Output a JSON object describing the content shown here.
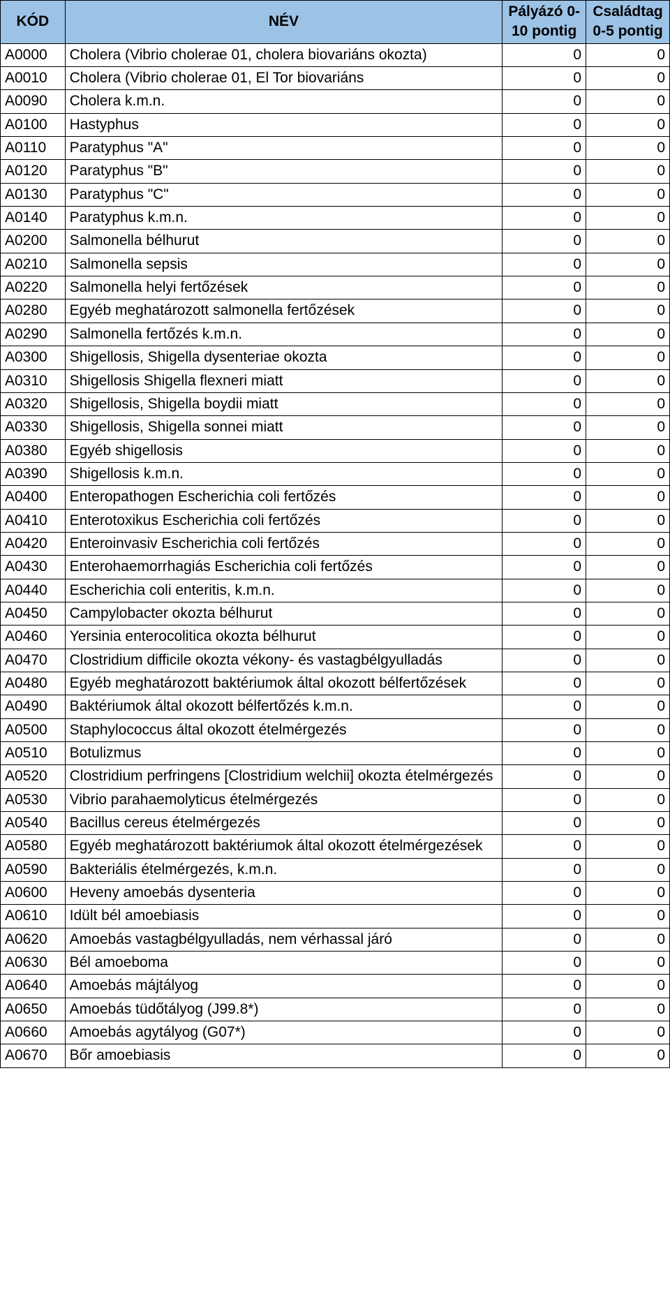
{
  "table": {
    "header_bg": "#9cc2e5",
    "columns": [
      {
        "key": "code",
        "label": "KÓD"
      },
      {
        "key": "name",
        "label": "NÉV"
      },
      {
        "key": "p1",
        "label": "Pályázó 0-10 pontig"
      },
      {
        "key": "p2",
        "label": "Családtag 0-5 pontig"
      }
    ],
    "rows": [
      {
        "code": "A0000",
        "name": "Cholera (Vibrio cholerae 01, cholera biovariáns okozta)",
        "p1": "0",
        "p2": "0"
      },
      {
        "code": "A0010",
        "name": "Cholera (Vibrio cholerae 01, El Tor biovariáns",
        "p1": "0",
        "p2": "0"
      },
      {
        "code": "A0090",
        "name": "Cholera k.m.n.",
        "p1": "0",
        "p2": "0"
      },
      {
        "code": "A0100",
        "name": "Hastyphus",
        "p1": "0",
        "p2": "0"
      },
      {
        "code": "A0110",
        "name": "Paratyphus \"A\"",
        "p1": "0",
        "p2": "0"
      },
      {
        "code": "A0120",
        "name": "Paratyphus \"B\"",
        "p1": "0",
        "p2": "0"
      },
      {
        "code": "A0130",
        "name": "Paratyphus \"C\"",
        "p1": "0",
        "p2": "0"
      },
      {
        "code": "A0140",
        "name": "Paratyphus k.m.n.",
        "p1": "0",
        "p2": "0"
      },
      {
        "code": "A0200",
        "name": "Salmonella bélhurut",
        "p1": "0",
        "p2": "0"
      },
      {
        "code": "A0210",
        "name": "Salmonella sepsis",
        "p1": "0",
        "p2": "0"
      },
      {
        "code": "A0220",
        "name": "Salmonella helyi fertőzések",
        "p1": "0",
        "p2": "0"
      },
      {
        "code": "A0280",
        "name": "Egyéb meghatározott salmonella fertőzések",
        "p1": "0",
        "p2": "0"
      },
      {
        "code": "A0290",
        "name": "Salmonella fertőzés k.m.n.",
        "p1": "0",
        "p2": "0"
      },
      {
        "code": "A0300",
        "name": "Shigellosis, Shigella dysenteriae okozta",
        "p1": "0",
        "p2": "0"
      },
      {
        "code": "A0310",
        "name": "Shigellosis Shigella flexneri miatt",
        "p1": "0",
        "p2": "0"
      },
      {
        "code": "A0320",
        "name": "Shigellosis, Shigella boydii miatt",
        "p1": "0",
        "p2": "0"
      },
      {
        "code": "A0330",
        "name": "Shigellosis, Shigella sonnei miatt",
        "p1": "0",
        "p2": "0"
      },
      {
        "code": "A0380",
        "name": "Egyéb shigellosis",
        "p1": "0",
        "p2": "0"
      },
      {
        "code": "A0390",
        "name": "Shigellosis k.m.n.",
        "p1": "0",
        "p2": "0"
      },
      {
        "code": "A0400",
        "name": "Enteropathogen Escherichia coli fertőzés",
        "p1": "0",
        "p2": "0"
      },
      {
        "code": "A0410",
        "name": "Enterotoxikus Escherichia coli fertőzés",
        "p1": "0",
        "p2": "0"
      },
      {
        "code": "A0420",
        "name": "Enteroinvasiv Escherichia coli fertőzés",
        "p1": "0",
        "p2": "0"
      },
      {
        "code": "A0430",
        "name": "Enterohaemorrhagiás Escherichia coli fertőzés",
        "p1": "0",
        "p2": "0"
      },
      {
        "code": "A0440",
        "name": "Escherichia coli enteritis, k.m.n.",
        "p1": "0",
        "p2": "0"
      },
      {
        "code": "A0450",
        "name": "Campylobacter okozta bélhurut",
        "p1": "0",
        "p2": "0"
      },
      {
        "code": "A0460",
        "name": "Yersinia enterocolitica okozta bélhurut",
        "p1": "0",
        "p2": "0"
      },
      {
        "code": "A0470",
        "name": "Clostridium difficile okozta vékony- és vastagbélgyulladás",
        "p1": "0",
        "p2": "0"
      },
      {
        "code": "A0480",
        "name": "Egyéb meghatározott baktériumok által okozott bélfertőzések",
        "p1": "0",
        "p2": "0"
      },
      {
        "code": "A0490",
        "name": "Baktériumok által okozott bélfertőzés k.m.n.",
        "p1": "0",
        "p2": "0"
      },
      {
        "code": "A0500",
        "name": "Staphylococcus által okozott ételmérgezés",
        "p1": "0",
        "p2": "0"
      },
      {
        "code": "A0510",
        "name": "Botulizmus",
        "p1": "0",
        "p2": "0"
      },
      {
        "code": "A0520",
        "name": "Clostridium perfringens [Clostridium welchii] okozta ételmérgezés",
        "p1": "0",
        "p2": "0"
      },
      {
        "code": "A0530",
        "name": "Vibrio parahaemolyticus ételmérgezés",
        "p1": "0",
        "p2": "0"
      },
      {
        "code": "A0540",
        "name": "Bacillus cereus ételmérgezés",
        "p1": "0",
        "p2": "0"
      },
      {
        "code": "A0580",
        "name": "Egyéb meghatározott baktériumok által okozott ételmérgezések",
        "p1": "0",
        "p2": "0"
      },
      {
        "code": "A0590",
        "name": "Bakteriális ételmérgezés, k.m.n.",
        "p1": "0",
        "p2": "0"
      },
      {
        "code": "A0600",
        "name": "Heveny amoebás dysenteria",
        "p1": "0",
        "p2": "0"
      },
      {
        "code": "A0610",
        "name": "Idült bél amoebiasis",
        "p1": "0",
        "p2": "0"
      },
      {
        "code": "A0620",
        "name": "Amoebás vastagbélgyulladás, nem vérhassal járó",
        "p1": "0",
        "p2": "0"
      },
      {
        "code": "A0630",
        "name": "Bél amoeboma",
        "p1": "0",
        "p2": "0"
      },
      {
        "code": "A0640",
        "name": "Amoebás májtályog",
        "p1": "0",
        "p2": "0"
      },
      {
        "code": "A0650",
        "name": "Amoebás tüdőtályog (J99.8*)",
        "p1": "0",
        "p2": "0"
      },
      {
        "code": "A0660",
        "name": "Amoebás agytályog (G07*)",
        "p1": "0",
        "p2": "0"
      },
      {
        "code": "A0670",
        "name": "Bőr amoebiasis",
        "p1": "0",
        "p2": "0"
      }
    ]
  }
}
